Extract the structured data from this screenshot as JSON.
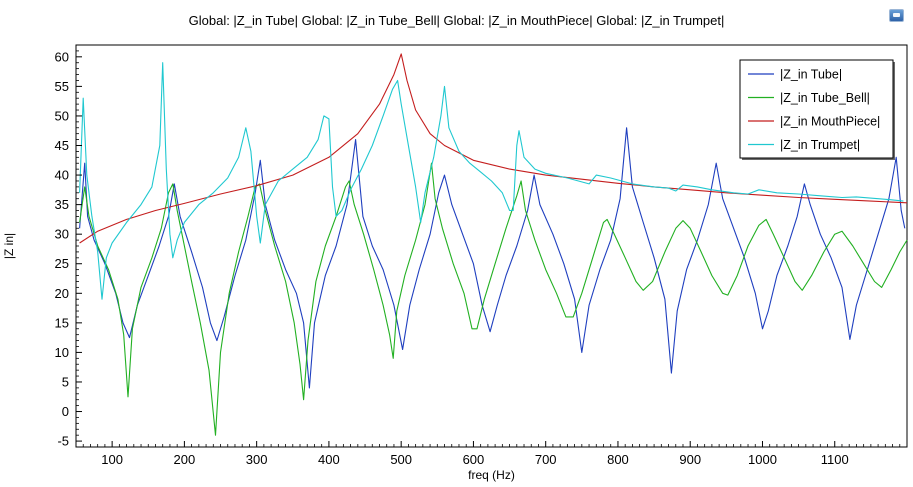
{
  "chart_data": {
    "type": "line",
    "title": "Global: |Z_in Tube|  Global: |Z_in Tube_Bell|  Global: |Z_in MouthPiece|  Global: |Z_in Trumpet|",
    "xlabel": "freq (Hz)",
    "ylabel": "|Z in|",
    "xlim": [
      50,
      1200
    ],
    "ylim": [
      -6,
      62
    ],
    "x_ticks": [
      100,
      200,
      300,
      400,
      500,
      600,
      700,
      800,
      900,
      1000,
      1100
    ],
    "y_ticks": [
      -5,
      0,
      5,
      10,
      15,
      20,
      25,
      30,
      35,
      40,
      45,
      50,
      55,
      60
    ],
    "grid": false,
    "legend_position": "top-right",
    "series": [
      {
        "name": "|Z_in Tube|",
        "color": "#1f3fbf",
        "points": [
          [
            55,
            31
          ],
          [
            62,
            42
          ],
          [
            66,
            33
          ],
          [
            75,
            29
          ],
          [
            90,
            25
          ],
          [
            105,
            20
          ],
          [
            115,
            15
          ],
          [
            124,
            12.5
          ],
          [
            135,
            18
          ],
          [
            150,
            23
          ],
          [
            165,
            28
          ],
          [
            178,
            33
          ],
          [
            186,
            38.5
          ],
          [
            194,
            33
          ],
          [
            210,
            27
          ],
          [
            225,
            21
          ],
          [
            236,
            15
          ],
          [
            245,
            12
          ],
          [
            255,
            16
          ],
          [
            270,
            23
          ],
          [
            285,
            29
          ],
          [
            298,
            37
          ],
          [
            305,
            42.5
          ],
          [
            312,
            35
          ],
          [
            325,
            29
          ],
          [
            340,
            24
          ],
          [
            355,
            20
          ],
          [
            365,
            15
          ],
          [
            373,
            4
          ],
          [
            380,
            15
          ],
          [
            395,
            23
          ],
          [
            410,
            28
          ],
          [
            425,
            35
          ],
          [
            437,
            46
          ],
          [
            447,
            33
          ],
          [
            460,
            28
          ],
          [
            475,
            24
          ],
          [
            490,
            18
          ],
          [
            502,
            10.5
          ],
          [
            512,
            18
          ],
          [
            525,
            24
          ],
          [
            540,
            30
          ],
          [
            552,
            37
          ],
          [
            560,
            40
          ],
          [
            570,
            35
          ],
          [
            585,
            30
          ],
          [
            600,
            25
          ],
          [
            612,
            18
          ],
          [
            623,
            13.5
          ],
          [
            633,
            18
          ],
          [
            645,
            23
          ],
          [
            660,
            28
          ],
          [
            675,
            34
          ],
          [
            684,
            40
          ],
          [
            692,
            35
          ],
          [
            710,
            30
          ],
          [
            725,
            25
          ],
          [
            740,
            19
          ],
          [
            750,
            10
          ],
          [
            760,
            18
          ],
          [
            775,
            24
          ],
          [
            790,
            29
          ],
          [
            803,
            36
          ],
          [
            812,
            48
          ],
          [
            820,
            38
          ],
          [
            835,
            32
          ],
          [
            850,
            26
          ],
          [
            865,
            19
          ],
          [
            874,
            6.5
          ],
          [
            882,
            17
          ],
          [
            895,
            24
          ],
          [
            910,
            29
          ],
          [
            925,
            35
          ],
          [
            936,
            42
          ],
          [
            945,
            36
          ],
          [
            960,
            31
          ],
          [
            975,
            26
          ],
          [
            990,
            20
          ],
          [
            1000,
            14
          ],
          [
            1008,
            17
          ],
          [
            1020,
            23
          ],
          [
            1035,
            28
          ],
          [
            1048,
            33
          ],
          [
            1058,
            38.5
          ],
          [
            1066,
            35
          ],
          [
            1080,
            30
          ],
          [
            1095,
            26
          ],
          [
            1110,
            21
          ],
          [
            1121,
            12.2
          ],
          [
            1130,
            18
          ],
          [
            1145,
            24
          ],
          [
            1160,
            30
          ],
          [
            1175,
            36
          ],
          [
            1185,
            43
          ],
          [
            1192,
            34
          ],
          [
            1197,
            31
          ]
        ]
      },
      {
        "name": "|Z_in Tube_Bell|",
        "color": "#22b022",
        "points": [
          [
            55,
            32
          ],
          [
            62,
            38
          ],
          [
            68,
            33
          ],
          [
            80,
            28
          ],
          [
            95,
            24
          ],
          [
            108,
            19
          ],
          [
            116,
            13
          ],
          [
            122,
            2.5
          ],
          [
            128,
            14
          ],
          [
            140,
            21
          ],
          [
            155,
            26
          ],
          [
            168,
            31
          ],
          [
            178,
            37
          ],
          [
            184,
            38.5
          ],
          [
            190,
            34
          ],
          [
            200,
            28
          ],
          [
            210,
            22
          ],
          [
            222,
            15
          ],
          [
            234,
            7
          ],
          [
            243,
            -4
          ],
          [
            250,
            10
          ],
          [
            262,
            20
          ],
          [
            275,
            27
          ],
          [
            288,
            33
          ],
          [
            298,
            38
          ],
          [
            304,
            38.5
          ],
          [
            312,
            34
          ],
          [
            325,
            28
          ],
          [
            340,
            22
          ],
          [
            352,
            15
          ],
          [
            360,
            8
          ],
          [
            365,
            2
          ],
          [
            371,
            12
          ],
          [
            382,
            22
          ],
          [
            395,
            28
          ],
          [
            410,
            33
          ],
          [
            423,
            38
          ],
          [
            428,
            39
          ],
          [
            435,
            35
          ],
          [
            448,
            30
          ],
          [
            462,
            24
          ],
          [
            475,
            18
          ],
          [
            484,
            13
          ],
          [
            489,
            9
          ],
          [
            494,
            17
          ],
          [
            505,
            23
          ],
          [
            520,
            29
          ],
          [
            533,
            35
          ],
          [
            542,
            42
          ],
          [
            547,
            36
          ],
          [
            557,
            31
          ],
          [
            572,
            25
          ],
          [
            587,
            20
          ],
          [
            598,
            14
          ],
          [
            605,
            14
          ],
          [
            615,
            19
          ],
          [
            630,
            25
          ],
          [
            645,
            31
          ],
          [
            660,
            36.5
          ],
          [
            666,
            39
          ],
          [
            672,
            34
          ],
          [
            685,
            29
          ],
          [
            700,
            24
          ],
          [
            715,
            20
          ],
          [
            728,
            16
          ],
          [
            738,
            16
          ],
          [
            750,
            20
          ],
          [
            765,
            26
          ],
          [
            780,
            32
          ],
          [
            785,
            32.5
          ],
          [
            795,
            30
          ],
          [
            810,
            26
          ],
          [
            825,
            22
          ],
          [
            835,
            20.5
          ],
          [
            848,
            22
          ],
          [
            865,
            27
          ],
          [
            880,
            31
          ],
          [
            890,
            32.3
          ],
          [
            900,
            31
          ],
          [
            915,
            27
          ],
          [
            930,
            23
          ],
          [
            945,
            20
          ],
          [
            952,
            19.7
          ],
          [
            965,
            23
          ],
          [
            980,
            28
          ],
          [
            995,
            31.5
          ],
          [
            1005,
            32.5
          ],
          [
            1015,
            30
          ],
          [
            1030,
            26
          ],
          [
            1045,
            22
          ],
          [
            1055,
            20.5
          ],
          [
            1068,
            23
          ],
          [
            1085,
            27
          ],
          [
            1100,
            30
          ],
          [
            1110,
            30.5
          ],
          [
            1125,
            28
          ],
          [
            1140,
            25
          ],
          [
            1155,
            22
          ],
          [
            1165,
            21
          ],
          [
            1178,
            24
          ],
          [
            1190,
            27
          ],
          [
            1200,
            29
          ]
        ]
      },
      {
        "name": "|Z_in MouthPiece|",
        "color": "#c41e1e",
        "points": [
          [
            55,
            28.5
          ],
          [
            80,
            30.5
          ],
          [
            120,
            32.5
          ],
          [
            160,
            34
          ],
          [
            200,
            35.2
          ],
          [
            250,
            36.8
          ],
          [
            300,
            38.2
          ],
          [
            350,
            40
          ],
          [
            400,
            43
          ],
          [
            440,
            47
          ],
          [
            470,
            52
          ],
          [
            490,
            57
          ],
          [
            500,
            60.5
          ],
          [
            508,
            56
          ],
          [
            520,
            51
          ],
          [
            540,
            47
          ],
          [
            560,
            45
          ],
          [
            600,
            42.5
          ],
          [
            650,
            41
          ],
          [
            700,
            40
          ],
          [
            750,
            39.3
          ],
          [
            800,
            38.6
          ],
          [
            850,
            38
          ],
          [
            900,
            37.5
          ],
          [
            950,
            37
          ],
          [
            1000,
            36.6
          ],
          [
            1050,
            36.2
          ],
          [
            1100,
            35.9
          ],
          [
            1150,
            35.6
          ],
          [
            1200,
            35.3
          ]
        ]
      },
      {
        "name": "|Z_in Trumpet|",
        "color": "#20c8d0",
        "points": [
          [
            55,
            37
          ],
          [
            60,
            53
          ],
          [
            65,
            40
          ],
          [
            72,
            33
          ],
          [
            80,
            27
          ],
          [
            86,
            19
          ],
          [
            92,
            26
          ],
          [
            100,
            28.5
          ],
          [
            120,
            32
          ],
          [
            140,
            35
          ],
          [
            155,
            38
          ],
          [
            166,
            45
          ],
          [
            170,
            59
          ],
          [
            175,
            41
          ],
          [
            180,
            30
          ],
          [
            184,
            26
          ],
          [
            190,
            29
          ],
          [
            200,
            32
          ],
          [
            220,
            35
          ],
          [
            240,
            37
          ],
          [
            260,
            39.5
          ],
          [
            275,
            43
          ],
          [
            285,
            48
          ],
          [
            292,
            44
          ],
          [
            300,
            33
          ],
          [
            305,
            28.5
          ],
          [
            312,
            35
          ],
          [
            330,
            39
          ],
          [
            350,
            41
          ],
          [
            370,
            43
          ],
          [
            385,
            46
          ],
          [
            393,
            50
          ],
          [
            400,
            49.5
          ],
          [
            405,
            38
          ],
          [
            410,
            33
          ],
          [
            418,
            34
          ],
          [
            430,
            37.5
          ],
          [
            445,
            41
          ],
          [
            460,
            45
          ],
          [
            475,
            50
          ],
          [
            488,
            54.5
          ],
          [
            495,
            56
          ],
          [
            500,
            52
          ],
          [
            510,
            45
          ],
          [
            520,
            38
          ],
          [
            527,
            32
          ],
          [
            533,
            37
          ],
          [
            545,
            43
          ],
          [
            555,
            50
          ],
          [
            560,
            55
          ],
          [
            566,
            48
          ],
          [
            580,
            44
          ],
          [
            595,
            42
          ],
          [
            610,
            40.5
          ],
          [
            625,
            39
          ],
          [
            640,
            37
          ],
          [
            650,
            34
          ],
          [
            655,
            34
          ],
          [
            660,
            45
          ],
          [
            663,
            47.5
          ],
          [
            670,
            43
          ],
          [
            685,
            41
          ],
          [
            700,
            40.3
          ],
          [
            730,
            39.5
          ],
          [
            760,
            38.5
          ],
          [
            770,
            40
          ],
          [
            790,
            39.5
          ],
          [
            820,
            38.5
          ],
          [
            850,
            38
          ],
          [
            870,
            37.8
          ],
          [
            880,
            37.3
          ],
          [
            890,
            38.3
          ],
          [
            910,
            38
          ],
          [
            930,
            37.5
          ],
          [
            960,
            37
          ],
          [
            980,
            36.8
          ],
          [
            995,
            37.5
          ],
          [
            1020,
            37
          ],
          [
            1050,
            36.8
          ],
          [
            1080,
            36.5
          ],
          [
            1110,
            36.2
          ],
          [
            1130,
            36.3
          ],
          [
            1160,
            36
          ],
          [
            1180,
            35.8
          ],
          [
            1195,
            35.6
          ]
        ]
      }
    ]
  }
}
